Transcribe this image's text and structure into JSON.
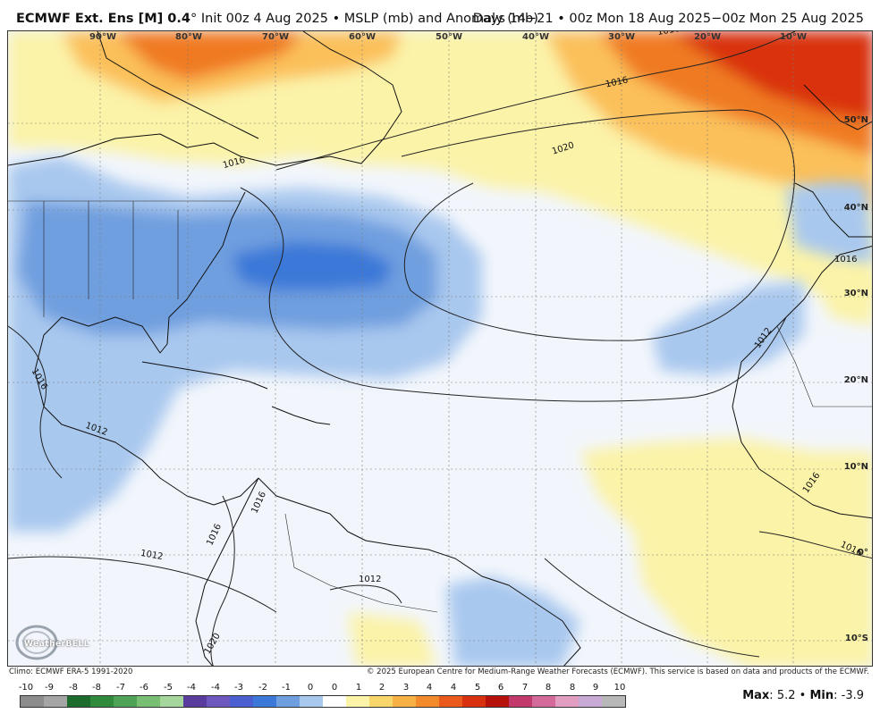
{
  "header": {
    "model": "ECMWF Ext. Ens [M] 0.4",
    "degree": "°",
    "init": "Init 00z 4 Aug 2025",
    "bullet": "•",
    "field": "MSLP (mb) and Anomaly (mb)",
    "valid": "Days 14−21 • 00z Mon 18 Aug 2025−00z Mon 25 Aug 2025"
  },
  "map": {
    "lon_labels": [
      "90°W",
      "80°W",
      "70°W",
      "60°W",
      "50°W",
      "40°W",
      "30°W",
      "20°W",
      "10°W"
    ],
    "lat_labels": [
      "50°N",
      "40°N",
      "30°N",
      "20°N",
      "10°N",
      "0°",
      "10°S"
    ],
    "isobar_labels": [
      "1016",
      "1020",
      "1016",
      "1016",
      "1016",
      "1012",
      "1016",
      "1012",
      "1012",
      "1016",
      "1016",
      "1012",
      "1016",
      "1020",
      "1016"
    ],
    "colors": {
      "ocean_neutral": "#f2f6fc",
      "neg_light": "#a9c8ee",
      "neg_mid": "#6f9fdf",
      "neg_strong": "#3b78d8",
      "pos_light": "#fbf3a8",
      "pos_mid": "#fbc05a",
      "pos_orange": "#f07a22",
      "pos_red": "#d9300f"
    }
  },
  "credits": {
    "left": "Climo: ECMWF ERA-5 1991-2020",
    "right": "© 2025 European Centre for Medium-Range Weather Forecasts (ECMWF). This service is based on data and products of the ECMWF.",
    "logo": "WeatherBELL"
  },
  "colorbar": {
    "ticks": [
      "-10",
      "-9",
      "-8",
      "-8",
      "-7",
      "-6",
      "-5",
      "-4",
      "-4",
      "-3",
      "-2",
      "-1",
      "0",
      "0",
      "1",
      "2",
      "3",
      "4",
      "4",
      "5",
      "6",
      "7",
      "8",
      "8",
      "9",
      "10"
    ],
    "colors": [
      "#8c8c8c",
      "#a5a5a5",
      "#1e6b2e",
      "#2f8a3c",
      "#4fa356",
      "#78bf74",
      "#a5d69c",
      "#5a3c9e",
      "#6e58c0",
      "#4c5fd0",
      "#3b78d8",
      "#6f9fdf",
      "#a9c8ee",
      "#ffffff",
      "#fbf3a8",
      "#f8d66b",
      "#f7b043",
      "#f28a2b",
      "#ea5a1c",
      "#d9300f",
      "#b5120b",
      "#c23a6b",
      "#d36a99",
      "#e29ec0",
      "#c9a9d6",
      "#b8b8b8"
    ]
  },
  "stats": {
    "max_label": "Max",
    "max_value": "5.2",
    "sep": "•",
    "min_label": "Min",
    "min_value": "-3.9"
  }
}
